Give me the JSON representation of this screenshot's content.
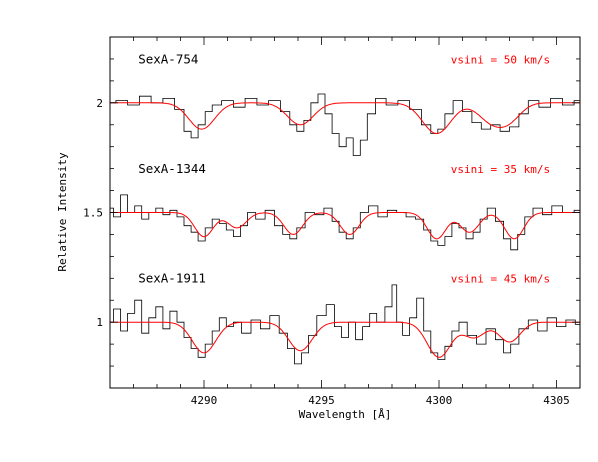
{
  "chart_data": {
    "type": "line",
    "xlabel": "Wavelength [Å]",
    "ylabel": "Relative Intensity",
    "xlim": [
      4286,
      4306
    ],
    "ylim": [
      0.7,
      2.3
    ],
    "xticks_major": [
      4290,
      4295,
      4300,
      4305
    ],
    "xticks_minor_step": 1,
    "yticks_major": [
      1,
      1.5,
      2
    ],
    "yticks_minor_step": 0.1,
    "model_color": "#ff0000",
    "spectrum_color": "#000000",
    "series": [
      {
        "name": "SexA-754",
        "vsini_label": "vsini = 50 km/s",
        "continuum": 2.0,
        "observed": [
          [
            4286.0,
            2.0
          ],
          [
            4286.5,
            2.01
          ],
          [
            4287.0,
            1.99
          ],
          [
            4287.5,
            2.03
          ],
          [
            4288.0,
            2.0
          ],
          [
            4288.5,
            2.02
          ],
          [
            4289.0,
            1.97
          ],
          [
            4289.3,
            1.87
          ],
          [
            4289.6,
            1.84
          ],
          [
            4289.9,
            1.9
          ],
          [
            4290.2,
            1.96
          ],
          [
            4290.5,
            1.99
          ],
          [
            4291.0,
            2.01
          ],
          [
            4291.5,
            1.98
          ],
          [
            4292.0,
            2.02
          ],
          [
            4292.5,
            1.99
          ],
          [
            4293.0,
            2.01
          ],
          [
            4293.5,
            1.96
          ],
          [
            4293.8,
            1.9
          ],
          [
            4294.1,
            1.87
          ],
          [
            4294.4,
            1.92
          ],
          [
            4294.7,
            2.0
          ],
          [
            4295.0,
            2.04
          ],
          [
            4295.3,
            1.95
          ],
          [
            4295.6,
            1.86
          ],
          [
            4295.9,
            1.8
          ],
          [
            4296.2,
            1.84
          ],
          [
            4296.5,
            1.76
          ],
          [
            4296.8,
            1.83
          ],
          [
            4297.1,
            1.95
          ],
          [
            4297.5,
            2.02
          ],
          [
            4298.0,
            1.99
          ],
          [
            4298.5,
            2.01
          ],
          [
            4299.0,
            1.97
          ],
          [
            4299.5,
            1.9
          ],
          [
            4299.8,
            1.86
          ],
          [
            4300.1,
            1.88
          ],
          [
            4300.4,
            1.95
          ],
          [
            4300.8,
            2.01
          ],
          [
            4301.2,
            1.96
          ],
          [
            4301.6,
            1.91
          ],
          [
            4302.0,
            1.88
          ],
          [
            4302.4,
            1.9
          ],
          [
            4302.8,
            1.87
          ],
          [
            4303.2,
            1.89
          ],
          [
            4303.6,
            1.95
          ],
          [
            4304.0,
            2.01
          ],
          [
            4304.5,
            1.98
          ],
          [
            4305.0,
            2.02
          ],
          [
            4305.5,
            1.99
          ],
          [
            4306.0,
            2.01
          ]
        ],
        "lines": [
          {
            "center": 4289.9,
            "depth": 0.12,
            "width": 0.55
          },
          {
            "center": 4294.1,
            "depth": 0.1,
            "width": 0.55
          },
          {
            "center": 4299.9,
            "depth": 0.14,
            "width": 0.6
          },
          {
            "center": 4302.2,
            "depth": 0.08,
            "width": 0.55
          },
          {
            "center": 4303.0,
            "depth": 0.07,
            "width": 0.5
          }
        ]
      },
      {
        "name": "SexA-1344",
        "vsini_label": "vsini = 35 km/s",
        "continuum": 1.5,
        "observed": [
          [
            4286.0,
            1.52
          ],
          [
            4286.3,
            1.48
          ],
          [
            4286.6,
            1.58
          ],
          [
            4286.9,
            1.5
          ],
          [
            4287.2,
            1.53
          ],
          [
            4287.5,
            1.47
          ],
          [
            4287.8,
            1.5
          ],
          [
            4288.1,
            1.52
          ],
          [
            4288.4,
            1.49
          ],
          [
            4288.7,
            1.51
          ],
          [
            4289.0,
            1.48
          ],
          [
            4289.3,
            1.44
          ],
          [
            4289.6,
            1.41
          ],
          [
            4289.9,
            1.37
          ],
          [
            4290.2,
            1.43
          ],
          [
            4290.5,
            1.47
          ],
          [
            4290.8,
            1.45
          ],
          [
            4291.1,
            1.42
          ],
          [
            4291.4,
            1.39
          ],
          [
            4291.7,
            1.44
          ],
          [
            4292.0,
            1.5
          ],
          [
            4292.4,
            1.47
          ],
          [
            4292.8,
            1.51
          ],
          [
            4293.2,
            1.44
          ],
          [
            4293.5,
            1.4
          ],
          [
            4293.8,
            1.38
          ],
          [
            4294.1,
            1.43
          ],
          [
            4294.5,
            1.5
          ],
          [
            4294.9,
            1.49
          ],
          [
            4295.3,
            1.52
          ],
          [
            4295.6,
            1.46
          ],
          [
            4295.9,
            1.41
          ],
          [
            4296.2,
            1.38
          ],
          [
            4296.5,
            1.43
          ],
          [
            4296.8,
            1.5
          ],
          [
            4297.2,
            1.53
          ],
          [
            4297.6,
            1.48
          ],
          [
            4298.0,
            1.51
          ],
          [
            4298.4,
            1.5
          ],
          [
            4298.8,
            1.48
          ],
          [
            4299.2,
            1.47
          ],
          [
            4299.5,
            1.42
          ],
          [
            4299.8,
            1.37
          ],
          [
            4300.1,
            1.35
          ],
          [
            4300.4,
            1.39
          ],
          [
            4300.7,
            1.45
          ],
          [
            4301.0,
            1.43
          ],
          [
            4301.3,
            1.38
          ],
          [
            4301.6,
            1.41
          ],
          [
            4301.9,
            1.47
          ],
          [
            4302.2,
            1.52
          ],
          [
            4302.6,
            1.46
          ],
          [
            4302.9,
            1.38
          ],
          [
            4303.2,
            1.33
          ],
          [
            4303.5,
            1.4
          ],
          [
            4303.8,
            1.48
          ],
          [
            4304.2,
            1.52
          ],
          [
            4304.6,
            1.49
          ],
          [
            4305.0,
            1.53
          ],
          [
            4305.5,
            1.5
          ],
          [
            4306.0,
            1.51
          ]
        ],
        "lines": [
          {
            "center": 4290.0,
            "depth": 0.11,
            "width": 0.4
          },
          {
            "center": 4291.4,
            "depth": 0.07,
            "width": 0.4
          },
          {
            "center": 4293.8,
            "depth": 0.1,
            "width": 0.4
          },
          {
            "center": 4296.2,
            "depth": 0.1,
            "width": 0.4
          },
          {
            "center": 4299.9,
            "depth": 0.12,
            "width": 0.4
          },
          {
            "center": 4301.3,
            "depth": 0.09,
            "width": 0.4
          },
          {
            "center": 4303.2,
            "depth": 0.12,
            "width": 0.4
          }
        ]
      },
      {
        "name": "SexA-1911",
        "vsini_label": "vsini = 45 km/s",
        "continuum": 1.0,
        "observed": [
          [
            4286.0,
            1.0
          ],
          [
            4286.3,
            1.06
          ],
          [
            4286.6,
            0.96
          ],
          [
            4286.9,
            1.04
          ],
          [
            4287.2,
            1.1
          ],
          [
            4287.5,
            0.95
          ],
          [
            4287.8,
            1.02
          ],
          [
            4288.1,
            1.07
          ],
          [
            4288.4,
            0.97
          ],
          [
            4288.7,
            1.05
          ],
          [
            4289.0,
            1.0
          ],
          [
            4289.3,
            0.93
          ],
          [
            4289.6,
            0.88
          ],
          [
            4289.9,
            0.84
          ],
          [
            4290.2,
            0.9
          ],
          [
            4290.5,
            0.96
          ],
          [
            4290.8,
            1.02
          ],
          [
            4291.1,
            0.98
          ],
          [
            4291.4,
            1.0
          ],
          [
            4291.8,
            0.95
          ],
          [
            4292.2,
            1.01
          ],
          [
            4292.6,
            0.97
          ],
          [
            4293.0,
            1.03
          ],
          [
            4293.4,
            0.95
          ],
          [
            4293.7,
            0.88
          ],
          [
            4294.0,
            0.81
          ],
          [
            4294.3,
            0.86
          ],
          [
            4294.6,
            0.94
          ],
          [
            4295.0,
            1.03
          ],
          [
            4295.4,
            1.08
          ],
          [
            4295.7,
            0.98
          ],
          [
            4296.0,
            0.93
          ],
          [
            4296.3,
            1.0
          ],
          [
            4296.6,
            0.92
          ],
          [
            4296.9,
            0.98
          ],
          [
            4297.2,
            1.04
          ],
          [
            4297.5,
            1.0
          ],
          [
            4297.9,
            1.07
          ],
          [
            4298.1,
            1.17
          ],
          [
            4298.3,
            1.0
          ],
          [
            4298.6,
            0.94
          ],
          [
            4298.9,
            1.02
          ],
          [
            4299.2,
            1.11
          ],
          [
            4299.5,
            0.96
          ],
          [
            4299.8,
            0.86
          ],
          [
            4300.1,
            0.83
          ],
          [
            4300.4,
            0.89
          ],
          [
            4300.7,
            0.96
          ],
          [
            4301.0,
            1.0
          ],
          [
            4301.4,
            0.94
          ],
          [
            4301.8,
            0.9
          ],
          [
            4302.2,
            0.97
          ],
          [
            4302.6,
            0.92
          ],
          [
            4302.9,
            0.86
          ],
          [
            4303.2,
            0.9
          ],
          [
            4303.6,
            0.97
          ],
          [
            4304.0,
            1.01
          ],
          [
            4304.4,
            0.96
          ],
          [
            4304.8,
            1.02
          ],
          [
            4305.2,
            0.98
          ],
          [
            4305.6,
            1.01
          ],
          [
            4306.0,
            0.99
          ]
        ],
        "lines": [
          {
            "center": 4290.0,
            "depth": 0.14,
            "width": 0.5
          },
          {
            "center": 4294.1,
            "depth": 0.13,
            "width": 0.5
          },
          {
            "center": 4300.0,
            "depth": 0.16,
            "width": 0.5
          },
          {
            "center": 4301.5,
            "depth": 0.07,
            "width": 0.45
          },
          {
            "center": 4303.0,
            "depth": 0.09,
            "width": 0.45
          }
        ]
      }
    ]
  }
}
